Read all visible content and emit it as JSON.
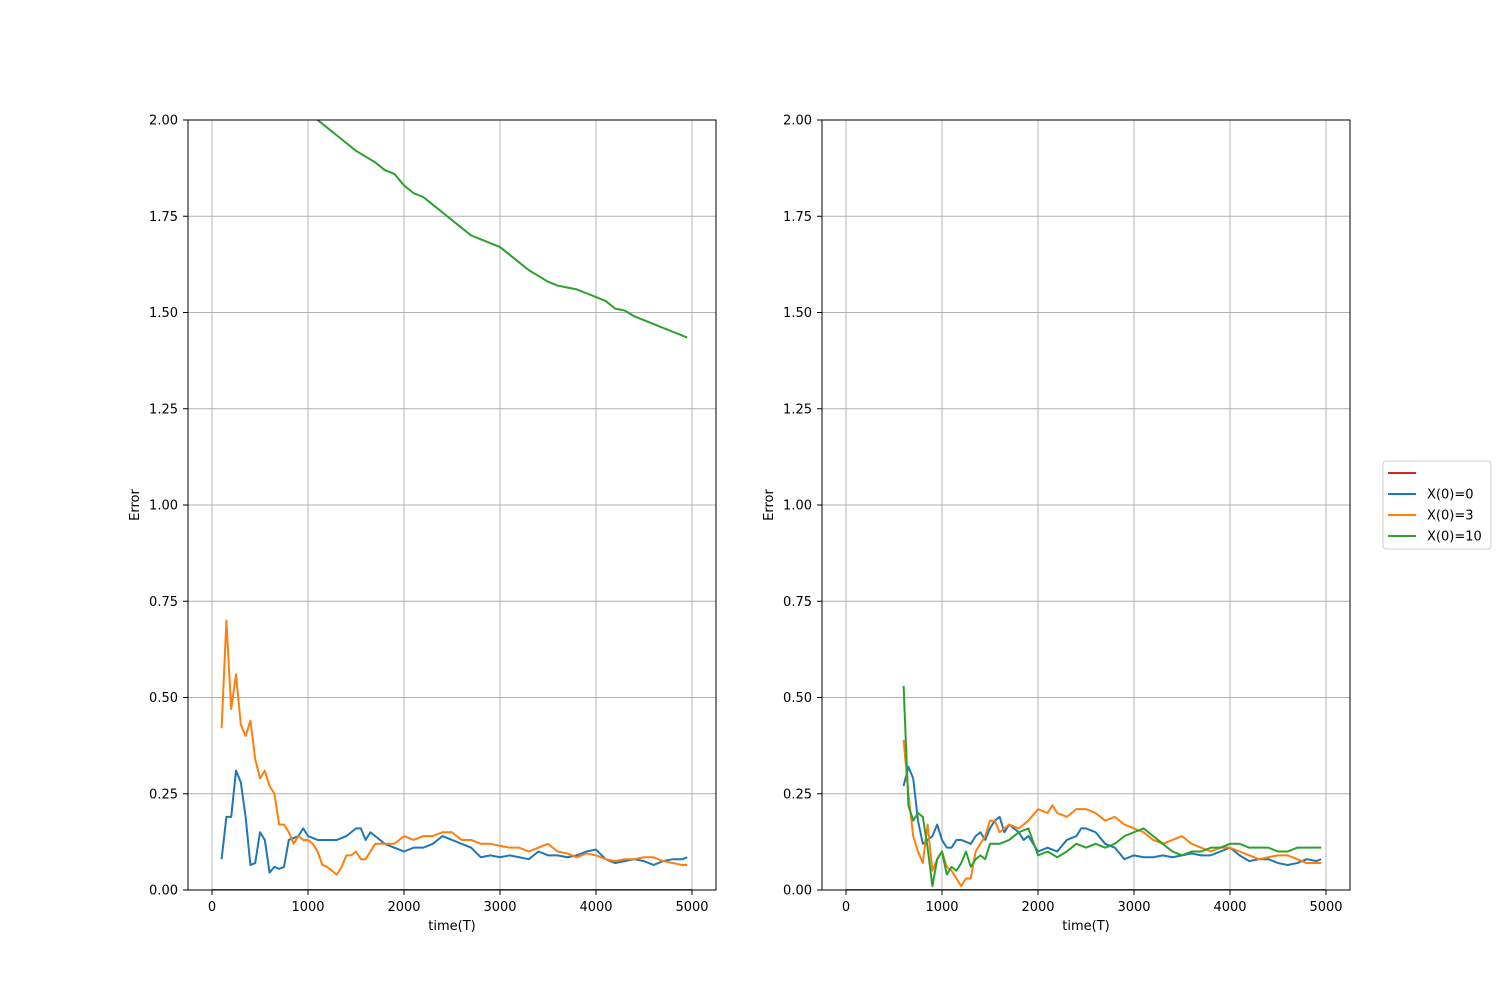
{
  "chart_data": [
    {
      "type": "line",
      "title": "",
      "xlabel": "time(T)",
      "ylabel": "Error",
      "xlim": [
        -250,
        5250
      ],
      "ylim": [
        0,
        2.0
      ],
      "xticks": [
        0,
        1000,
        2000,
        3000,
        4000,
        5000
      ],
      "yticks": [
        0.0,
        0.25,
        0.5,
        0.75,
        1.0,
        1.25,
        1.5,
        1.75,
        2.0
      ],
      "xtick_labels": [
        "0",
        "1000",
        "2000",
        "3000",
        "4000",
        "5000"
      ],
      "ytick_labels": [
        "0.00",
        "0.25",
        "0.50",
        "0.75",
        "1.00",
        "1.25",
        "1.50",
        "1.75",
        "2.00"
      ],
      "grid": true,
      "series": [
        {
          "color": "#d62728",
          "x": [
            0,
            5000
          ],
          "y": [
            0,
            0
          ]
        },
        {
          "color": "#1f77b4",
          "x": [
            100,
            150,
            200,
            250,
            300,
            350,
            400,
            450,
            500,
            550,
            600,
            650,
            700,
            750,
            800,
            850,
            900,
            950,
            1000,
            1100,
            1200,
            1300,
            1400,
            1500,
            1550,
            1600,
            1650,
            1700,
            1800,
            1900,
            2000,
            2100,
            2200,
            2300,
            2400,
            2500,
            2600,
            2700,
            2800,
            2900,
            3000,
            3100,
            3200,
            3300,
            3400,
            3500,
            3600,
            3700,
            3800,
            3900,
            4000,
            4100,
            4200,
            4300,
            4400,
            4500,
            4600,
            4700,
            4800,
            4900,
            4950
          ],
          "y": [
            0.08,
            0.19,
            0.19,
            0.31,
            0.28,
            0.19,
            0.065,
            0.07,
            0.15,
            0.13,
            0.045,
            0.06,
            0.055,
            0.06,
            0.13,
            0.135,
            0.14,
            0.16,
            0.14,
            0.13,
            0.13,
            0.13,
            0.14,
            0.16,
            0.16,
            0.13,
            0.15,
            0.14,
            0.12,
            0.11,
            0.1,
            0.11,
            0.11,
            0.12,
            0.14,
            0.13,
            0.12,
            0.11,
            0.085,
            0.09,
            0.085,
            0.09,
            0.085,
            0.08,
            0.1,
            0.09,
            0.09,
            0.085,
            0.09,
            0.1,
            0.105,
            0.08,
            0.07,
            0.075,
            0.08,
            0.075,
            0.065,
            0.075,
            0.08,
            0.08,
            0.085
          ]
        },
        {
          "color": "#ff7f0e",
          "x": [
            100,
            150,
            200,
            250,
            300,
            350,
            400,
            450,
            500,
            550,
            600,
            650,
            700,
            750,
            800,
            850,
            900,
            950,
            1000,
            1050,
            1100,
            1150,
            1200,
            1250,
            1300,
            1350,
            1400,
            1450,
            1500,
            1550,
            1600,
            1700,
            1800,
            1900,
            2000,
            2100,
            2200,
            2300,
            2400,
            2500,
            2600,
            2700,
            2800,
            2900,
            3000,
            3100,
            3200,
            3300,
            3400,
            3500,
            3600,
            3700,
            3800,
            3900,
            4000,
            4100,
            4200,
            4300,
            4400,
            4500,
            4600,
            4700,
            4800,
            4900,
            4950
          ],
          "y": [
            0.42,
            0.7,
            0.47,
            0.56,
            0.43,
            0.4,
            0.44,
            0.34,
            0.29,
            0.31,
            0.27,
            0.25,
            0.17,
            0.17,
            0.15,
            0.12,
            0.14,
            0.13,
            0.13,
            0.12,
            0.1,
            0.065,
            0.06,
            0.05,
            0.04,
            0.06,
            0.09,
            0.09,
            0.1,
            0.08,
            0.08,
            0.12,
            0.12,
            0.12,
            0.14,
            0.13,
            0.14,
            0.14,
            0.15,
            0.15,
            0.13,
            0.13,
            0.12,
            0.12,
            0.115,
            0.11,
            0.11,
            0.1,
            0.11,
            0.12,
            0.1,
            0.095,
            0.085,
            0.095,
            0.09,
            0.08,
            0.075,
            0.08,
            0.08,
            0.085,
            0.085,
            0.075,
            0.07,
            0.065,
            0.065
          ]
        },
        {
          "color": "#2ca02c",
          "x": [
            1100,
            1200,
            1300,
            1400,
            1500,
            1600,
            1700,
            1800,
            1900,
            2000,
            2100,
            2200,
            2300,
            2400,
            2500,
            2600,
            2700,
            2800,
            2900,
            3000,
            3100,
            3200,
            3300,
            3400,
            3500,
            3600,
            3700,
            3800,
            3900,
            4000,
            4100,
            4200,
            4300,
            4400,
            4500,
            4600,
            4700,
            4800,
            4900,
            4950
          ],
          "y": [
            2.0,
            1.98,
            1.96,
            1.94,
            1.92,
            1.905,
            1.89,
            1.87,
            1.86,
            1.83,
            1.81,
            1.8,
            1.78,
            1.76,
            1.74,
            1.72,
            1.7,
            1.69,
            1.68,
            1.67,
            1.65,
            1.63,
            1.61,
            1.595,
            1.58,
            1.57,
            1.565,
            1.56,
            1.55,
            1.54,
            1.53,
            1.51,
            1.505,
            1.49,
            1.48,
            1.47,
            1.46,
            1.45,
            1.44,
            1.435
          ]
        }
      ]
    },
    {
      "type": "line",
      "title": "",
      "xlabel": "time(T)",
      "ylabel": "Error",
      "xlim": [
        -250,
        5250
      ],
      "ylim": [
        0,
        2.0
      ],
      "xticks": [
        0,
        1000,
        2000,
        3000,
        4000,
        5000
      ],
      "yticks": [
        0.0,
        0.25,
        0.5,
        0.75,
        1.0,
        1.25,
        1.5,
        1.75,
        2.0
      ],
      "xtick_labels": [
        "0",
        "1000",
        "2000",
        "3000",
        "4000",
        "5000"
      ],
      "ytick_labels": [
        "0.00",
        "0.25",
        "0.50",
        "0.75",
        "1.00",
        "1.25",
        "1.50",
        "1.75",
        "2.00"
      ],
      "grid": true,
      "series": [
        {
          "color": "#d62728",
          "x": [
            0,
            5000
          ],
          "y": [
            0,
            0
          ]
        },
        {
          "color": "#1f77b4",
          "x": [
            600,
            650,
            700,
            750,
            800,
            850,
            900,
            950,
            1000,
            1050,
            1100,
            1150,
            1200,
            1300,
            1350,
            1400,
            1450,
            1500,
            1550,
            1600,
            1650,
            1700,
            1800,
            1850,
            1900,
            2000,
            2100,
            2200,
            2300,
            2400,
            2450,
            2500,
            2600,
            2700,
            2800,
            2900,
            3000,
            3100,
            3200,
            3300,
            3400,
            3500,
            3600,
            3700,
            3800,
            3900,
            4000,
            4100,
            4200,
            4300,
            4400,
            4500,
            4600,
            4700,
            4800,
            4900,
            4950
          ],
          "y": [
            0.27,
            0.32,
            0.29,
            0.18,
            0.12,
            0.13,
            0.14,
            0.17,
            0.13,
            0.11,
            0.11,
            0.13,
            0.13,
            0.12,
            0.14,
            0.15,
            0.13,
            0.16,
            0.18,
            0.19,
            0.15,
            0.17,
            0.15,
            0.13,
            0.14,
            0.1,
            0.11,
            0.1,
            0.13,
            0.14,
            0.16,
            0.16,
            0.15,
            0.12,
            0.11,
            0.08,
            0.09,
            0.085,
            0.085,
            0.09,
            0.085,
            0.09,
            0.095,
            0.09,
            0.09,
            0.1,
            0.11,
            0.09,
            0.075,
            0.08,
            0.08,
            0.07,
            0.065,
            0.07,
            0.08,
            0.075,
            0.08
          ]
        },
        {
          "color": "#ff7f0e",
          "x": [
            600,
            650,
            700,
            750,
            800,
            850,
            900,
            950,
            1000,
            1050,
            1100,
            1150,
            1200,
            1250,
            1300,
            1350,
            1400,
            1450,
            1500,
            1550,
            1600,
            1700,
            1800,
            1900,
            2000,
            2100,
            2150,
            2200,
            2300,
            2400,
            2500,
            2600,
            2700,
            2800,
            2900,
            3000,
            3100,
            3200,
            3300,
            3400,
            3500,
            3600,
            3700,
            3800,
            3900,
            4000,
            4100,
            4200,
            4300,
            4400,
            4500,
            4600,
            4700,
            4800,
            4900,
            4950
          ],
          "y": [
            0.39,
            0.25,
            0.14,
            0.1,
            0.07,
            0.17,
            0.05,
            0.08,
            0.1,
            0.06,
            0.05,
            0.03,
            0.01,
            0.03,
            0.03,
            0.1,
            0.12,
            0.14,
            0.18,
            0.18,
            0.15,
            0.17,
            0.16,
            0.18,
            0.21,
            0.2,
            0.22,
            0.2,
            0.19,
            0.21,
            0.21,
            0.2,
            0.18,
            0.19,
            0.17,
            0.16,
            0.15,
            0.13,
            0.12,
            0.13,
            0.14,
            0.12,
            0.11,
            0.1,
            0.11,
            0.11,
            0.1,
            0.09,
            0.08,
            0.085,
            0.09,
            0.09,
            0.08,
            0.07,
            0.07,
            0.07
          ]
        },
        {
          "color": "#2ca02c",
          "x": [
            600,
            650,
            700,
            750,
            800,
            850,
            900,
            950,
            1000,
            1050,
            1100,
            1150,
            1200,
            1250,
            1300,
            1350,
            1400,
            1450,
            1500,
            1600,
            1700,
            1800,
            1900,
            2000,
            2100,
            2200,
            2300,
            2400,
            2500,
            2600,
            2700,
            2800,
            2900,
            3000,
            3100,
            3200,
            3300,
            3400,
            3500,
            3600,
            3700,
            3800,
            3900,
            4000,
            4100,
            4200,
            4300,
            4400,
            4500,
            4600,
            4700,
            4800,
            4900,
            4950
          ],
          "y": [
            0.53,
            0.22,
            0.18,
            0.2,
            0.19,
            0.11,
            0.01,
            0.08,
            0.1,
            0.04,
            0.06,
            0.05,
            0.07,
            0.1,
            0.06,
            0.08,
            0.09,
            0.08,
            0.12,
            0.12,
            0.13,
            0.15,
            0.16,
            0.09,
            0.1,
            0.085,
            0.1,
            0.12,
            0.11,
            0.12,
            0.11,
            0.12,
            0.14,
            0.15,
            0.16,
            0.14,
            0.12,
            0.1,
            0.09,
            0.1,
            0.1,
            0.11,
            0.11,
            0.12,
            0.12,
            0.11,
            0.11,
            0.11,
            0.1,
            0.1,
            0.11,
            0.11,
            0.11,
            0.11
          ]
        }
      ]
    }
  ],
  "legend": {
    "entries": [
      {
        "label": "",
        "color": "#d62728"
      },
      {
        "label": "X(0)=0",
        "color": "#1f77b4"
      },
      {
        "label": "X(0)=3",
        "color": "#ff7f0e"
      },
      {
        "label": "X(0)=10",
        "color": "#2ca02c"
      }
    ]
  }
}
